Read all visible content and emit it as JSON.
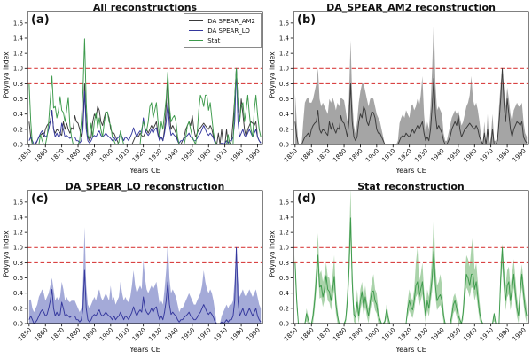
{
  "figure": {
    "background": "#ffffff"
  },
  "axes": {
    "xlabel": "Years CE",
    "ylabel": "Polynya index",
    "x_ticks": [
      1850,
      1860,
      1870,
      1880,
      1890,
      1900,
      1910,
      1920,
      1930,
      1940,
      1950,
      1960,
      1970,
      1980,
      1990
    ],
    "y_ticks": [
      "0.0",
      "0.2",
      "0.4",
      "0.6",
      "0.8",
      "1.0",
      "1.2",
      "1.4",
      "1.6"
    ],
    "xlim": [
      1849,
      1993
    ],
    "ylim": [
      0,
      1.75
    ]
  },
  "colors": {
    "threshold_red": "#d94343",
    "am2_line": "#3a3a3a",
    "am2_band": "#8f8f8f",
    "lo_line": "#34379d",
    "lo_band": "#949bd1",
    "stat_line": "#3c9a4b",
    "stat_band": "#9bcb9b",
    "frame": "#000000"
  },
  "legend": [
    {
      "label": "DA SPEAR_AM2",
      "color": "#3a3a3a"
    },
    {
      "label": "DA SPEAR_LO",
      "color": "#34379d"
    },
    {
      "label": "Stat",
      "color": "#3c9a4b"
    }
  ],
  "panels": [
    {
      "letter": "(a)",
      "title": "All reconstructions",
      "lines": [
        "am2",
        "lo",
        "stat"
      ],
      "band": null
    },
    {
      "letter": "(b)",
      "title": "DA_SPEAR_AM2 reconstruction",
      "lines": [
        "am2"
      ],
      "band": "am2_upper",
      "band_color": "#8f8f8f",
      "band_opacity": 0.8
    },
    {
      "letter": "(c)",
      "title": "DA_SPEAR_LO reconstruction",
      "lines": [
        "lo"
      ],
      "band": "lo_upper",
      "band_color": "#949bd1",
      "band_opacity": 0.85
    },
    {
      "letter": "(d)",
      "title": "Stat reconstruction",
      "lines": [
        "stat"
      ],
      "band": "stat_upper",
      "band_color": "#9bcb9b",
      "band_opacity": 0.85,
      "tight_lower": true
    }
  ],
  "chart_data": {
    "type": "line",
    "xlabel": "Years CE",
    "ylabel": "Polynya index",
    "years_start": 1850,
    "years_end": 1992,
    "thresholds": [
      0.8,
      1.0
    ],
    "titles": [
      "All reconstructions",
      "DA_SPEAR_AM2 reconstruction",
      "DA_SPEAR_LO reconstruction",
      "Stat reconstruction"
    ],
    "series": {
      "am2": [
        0.3,
        0.1,
        0,
        0,
        0,
        0.05,
        0.1,
        0.12,
        0.15,
        0.1,
        0.2,
        0.25,
        0.28,
        0.3,
        0.45,
        0.2,
        0.15,
        0.2,
        0.18,
        0.15,
        0.12,
        0.3,
        0.2,
        0.28,
        0.2,
        0.15,
        0.22,
        0.2,
        0.38,
        0.3,
        0.28,
        0.2,
        0.1,
        0.3,
        0.8,
        0.3,
        0.1,
        0.05,
        0.1,
        0.3,
        0.4,
        0.35,
        0.5,
        0.45,
        0.3,
        0.25,
        0.35,
        0.43,
        0.42,
        0.35,
        0.2,
        0.15,
        0.15,
        0.1,
        0.05,
        0,
        0,
        0,
        0,
        0,
        0,
        0,
        0,
        0,
        0.05,
        0.1,
        0.12,
        0.1,
        0.15,
        0.12,
        0.1,
        0.15,
        0.2,
        0.15,
        0.2,
        0.25,
        0.2,
        0.25,
        0.3,
        0.15,
        0.05,
        0.1,
        0.05,
        0.2,
        0.5,
        0.87,
        0.4,
        0.2,
        0.25,
        0.2,
        0.15,
        0.05,
        0,
        0,
        0.05,
        0.1,
        0.2,
        0.25,
        0.3,
        0.25,
        0.38,
        0.2,
        0.1,
        0.15,
        0.2,
        0.22,
        0.25,
        0.28,
        0.25,
        0.22,
        0.2,
        0.25,
        0.2,
        0.1,
        0.05,
        0,
        0.15,
        0,
        0.2,
        0,
        0,
        0.2,
        0,
        0,
        0.05,
        0.3,
        0.6,
        1.0,
        0.55,
        0.3,
        0.6,
        0.4,
        0.2,
        0.1,
        0.2,
        0.25,
        0.3,
        0.28,
        0.25,
        0.3,
        0.1,
        0.05,
        0.02
      ],
      "lo": [
        0.05,
        0.1,
        0.05,
        0,
        0.02,
        0.05,
        0.1,
        0.15,
        0.18,
        0.15,
        0.1,
        0.12,
        0.2,
        0.3,
        0.45,
        0.2,
        0.1,
        0.15,
        0.1,
        0.12,
        0.28,
        0.2,
        0.1,
        0.12,
        0.1,
        0.08,
        0.1,
        0.1,
        0.1,
        0.05,
        0.05,
        0.02,
        0.05,
        0.2,
        0.7,
        0.2,
        0.05,
        0.02,
        0.05,
        0.1,
        0.12,
        0.1,
        0.15,
        0.18,
        0.12,
        0.1,
        0.12,
        0.15,
        0.12,
        0.1,
        0.08,
        0.05,
        0.1,
        0.05,
        0.08,
        0.1,
        0.15,
        0.1,
        0.05,
        0.1,
        0.08,
        0.05,
        0.1,
        0.15,
        0.22,
        0.15,
        0.1,
        0.15,
        0.18,
        0.15,
        0.35,
        0.2,
        0.15,
        0.12,
        0.15,
        0.2,
        0.15,
        0.2,
        0.22,
        0.12,
        0.05,
        0.1,
        0.05,
        0.15,
        0.3,
        0.55,
        0.25,
        0.12,
        0.15,
        0.12,
        0.1,
        0.05,
        0.02,
        0.05,
        0.05,
        0.08,
        0.1,
        0.12,
        0.15,
        0.1,
        0.08,
        0.05,
        0.05,
        0.08,
        0.12,
        0.15,
        0.2,
        0.25,
        0.2,
        0.15,
        0.12,
        0.15,
        0.12,
        0.08,
        0.02,
        0,
        0,
        0,
        0.02,
        0,
        0.02,
        0.05,
        0.02,
        0.05,
        0.05,
        0.1,
        0.3,
        1.0,
        0.3,
        0.1,
        0.15,
        0.2,
        0.12,
        0.1,
        0.15,
        0.2,
        0.15,
        0.1,
        0.15,
        0.2,
        0.1,
        0.05,
        0.02
      ],
      "stat": [
        0.8,
        0.3,
        0,
        0,
        0,
        0,
        0,
        0.13,
        0.05,
        0,
        0,
        0.1,
        0.3,
        0.6,
        0.9,
        0.48,
        0.5,
        0.35,
        0.45,
        0.63,
        0.45,
        0.42,
        0.3,
        0.45,
        0.62,
        0.25,
        0.1,
        0,
        0,
        0,
        0,
        0.05,
        0.3,
        0.7,
        1.39,
        0.55,
        0.12,
        0.08,
        0.28,
        0.1,
        0.3,
        0.42,
        0.22,
        0.35,
        0.2,
        0.1,
        0.28,
        0.42,
        0.43,
        0.3,
        0.25,
        0.1,
        0.05,
        0,
        0,
        0.03,
        0.18,
        0.08,
        0,
        0,
        0,
        0,
        0,
        0,
        0,
        0,
        0,
        0,
        0,
        0.2,
        0.3,
        0.22,
        0.18,
        0.3,
        0.5,
        0.55,
        0.35,
        0.45,
        0.55,
        0.3,
        0.1,
        0.3,
        0.2,
        0.4,
        0.6,
        0.95,
        0.5,
        0.3,
        0.35,
        0.38,
        0.3,
        0.1,
        0,
        0,
        0,
        0,
        0.1,
        0.25,
        0.3,
        0.2,
        0.1,
        0.05,
        0,
        0.15,
        0.45,
        0.65,
        0.6,
        0.5,
        0.65,
        0.65,
        0.45,
        0.55,
        0.35,
        0.15,
        0.05,
        0,
        0,
        0,
        0,
        0,
        0,
        0,
        0.13,
        0,
        0,
        0,
        0.6,
        1.0,
        0.55,
        0.3,
        0.5,
        0.55,
        0.3,
        0.45,
        0.65,
        0.4,
        0.2,
        0.1,
        0.45,
        0.65,
        0.4,
        0.2,
        0.1
      ]
    },
    "bands": {
      "am2_upper": [
        0.67,
        0.3,
        0,
        0,
        0,
        0.3,
        0.55,
        0.6,
        0.62,
        0.55,
        0.55,
        0.6,
        0.7,
        0.8,
        1.0,
        0.6,
        0.5,
        0.55,
        0.5,
        0.45,
        0.4,
        0.6,
        0.55,
        0.62,
        0.55,
        0.45,
        0.55,
        0.5,
        0.62,
        0.6,
        0.58,
        0.45,
        0.3,
        0.6,
        1.37,
        0.6,
        0.25,
        0.15,
        0.3,
        0.55,
        0.7,
        0.8,
        0.8,
        0.7,
        0.6,
        0.5,
        0.6,
        0.62,
        0.6,
        0.5,
        0.4,
        0.35,
        0.3,
        0.2,
        0.1,
        0,
        0,
        0,
        0,
        0,
        0,
        0,
        0,
        0.05,
        0.28,
        0.35,
        0.4,
        0.35,
        0.45,
        0.4,
        0.35,
        0.5,
        0.53,
        0.45,
        0.5,
        0.6,
        0.5,
        0.65,
        0.9,
        0.4,
        0.15,
        0.3,
        0.2,
        0.5,
        1.0,
        1.65,
        0.8,
        0.45,
        0.5,
        0.45,
        0.4,
        0.15,
        0.05,
        0.05,
        0.15,
        0.25,
        0.35,
        0.4,
        0.45,
        0.4,
        0.45,
        0.35,
        0.25,
        0.3,
        0.4,
        0.5,
        0.55,
        0.65,
        0.9,
        0.6,
        0.5,
        0.55,
        0.45,
        0.3,
        0.1,
        0,
        0.3,
        0,
        0.4,
        0,
        0.1,
        0.4,
        0.05,
        0.05,
        0.1,
        0.5,
        0.8,
        1.0,
        0.75,
        0.5,
        0.75,
        0.6,
        0.4,
        0.3,
        0.45,
        0.5,
        0.55,
        0.5,
        0.5,
        0.55,
        0.3,
        0.15,
        0.1
      ],
      "lo_upper": [
        0.3,
        0.32,
        0.2,
        0.15,
        0.2,
        0.25,
        0.35,
        0.4,
        0.45,
        0.4,
        0.3,
        0.35,
        0.4,
        0.5,
        0.6,
        0.45,
        0.3,
        0.35,
        0.3,
        0.35,
        0.55,
        0.45,
        0.3,
        0.35,
        0.3,
        0.28,
        0.3,
        0.3,
        0.3,
        0.25,
        0.2,
        0.15,
        0.2,
        0.5,
        1.27,
        0.5,
        0.25,
        0.2,
        0.25,
        0.3,
        0.35,
        0.3,
        0.4,
        0.45,
        0.35,
        0.3,
        0.35,
        0.4,
        0.35,
        0.3,
        0.5,
        0.3,
        0.35,
        0.25,
        0.3,
        0.35,
        0.55,
        0.4,
        0.3,
        0.35,
        0.3,
        0.28,
        0.35,
        0.5,
        0.7,
        0.5,
        0.4,
        0.45,
        0.5,
        0.45,
        0.84,
        0.6,
        0.45,
        0.4,
        0.45,
        0.5,
        0.45,
        0.5,
        0.55,
        0.4,
        0.25,
        0.3,
        0.25,
        0.45,
        0.7,
        1.1,
        0.6,
        0.4,
        0.45,
        0.4,
        0.35,
        0.25,
        0.15,
        0.2,
        0.2,
        0.25,
        0.3,
        0.35,
        0.4,
        0.35,
        0.3,
        0.25,
        0.25,
        0.3,
        0.35,
        0.4,
        0.5,
        0.7,
        0.55,
        0.45,
        0.4,
        0.45,
        0.4,
        0.3,
        0.15,
        0,
        0,
        0,
        0.1,
        0.15,
        0.2,
        0.25,
        0.2,
        0.25,
        0.25,
        0.3,
        0.6,
        1.02,
        0.6,
        0.35,
        0.4,
        0.45,
        0.38,
        0.35,
        0.4,
        0.45,
        0.4,
        0.35,
        0.4,
        0.45,
        0.35,
        0.25,
        0.2
      ],
      "stat_upper": [
        0.9,
        0.4,
        0,
        0,
        0,
        0,
        0,
        0.2,
        0.1,
        0,
        0,
        0.2,
        0.45,
        0.8,
        1.19,
        0.65,
        0.7,
        0.55,
        0.65,
        0.8,
        0.62,
        0.6,
        0.45,
        0.65,
        0.9,
        0.4,
        0.2,
        0,
        0,
        0,
        0,
        0.1,
        0.45,
        1.0,
        1.78,
        0.8,
        0.25,
        0.15,
        0.45,
        0.2,
        0.45,
        0.55,
        0.35,
        0.5,
        0.3,
        0.2,
        0.4,
        0.55,
        0.65,
        0.45,
        0.4,
        0.2,
        0.1,
        0,
        0,
        0.05,
        0.25,
        0.15,
        0,
        0,
        0,
        0,
        0,
        0,
        0,
        0,
        0,
        0,
        0,
        0.3,
        0.45,
        0.35,
        0.3,
        0.45,
        0.8,
        1.0,
        0.55,
        0.65,
        0.8,
        0.45,
        0.2,
        0.45,
        0.35,
        0.6,
        0.9,
        1.41,
        0.75,
        0.5,
        0.55,
        0.65,
        0.5,
        0.2,
        0,
        0,
        0,
        0,
        0.2,
        0.35,
        0.4,
        0.3,
        0.2,
        0.1,
        0,
        0.25,
        0.65,
        0.9,
        0.85,
        0.75,
        1.0,
        1.16,
        0.7,
        0.8,
        0.55,
        0.3,
        0.1,
        0,
        0,
        0,
        0,
        0,
        0,
        0,
        0.15,
        0,
        0,
        0,
        0.8,
        1.05,
        0.75,
        0.5,
        0.7,
        0.75,
        0.5,
        0.65,
        0.85,
        0.6,
        0.35,
        0.2,
        0.6,
        0.78,
        0.55,
        0.35,
        0.2
      ]
    },
    "tight_lower_rule": {
      "scale": 0.85,
      "offset": -0.08
    }
  }
}
